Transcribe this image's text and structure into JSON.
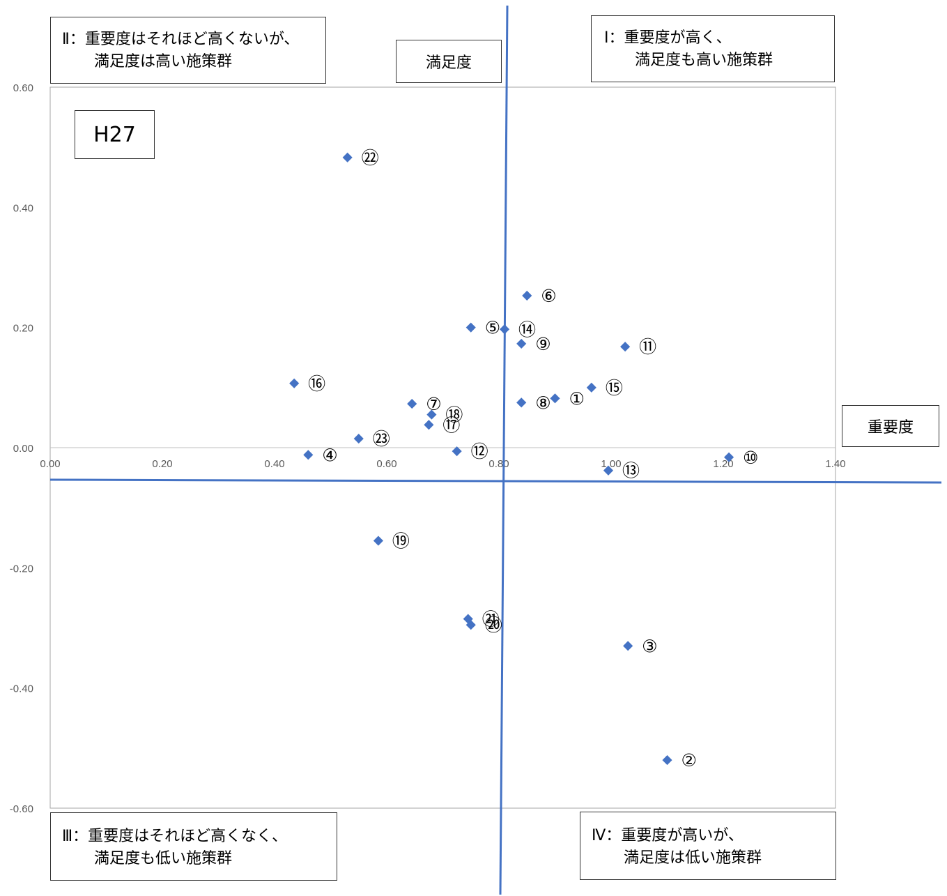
{
  "chart_data": {
    "type": "scatter",
    "title": "H27",
    "xlabel": "重要度",
    "ylabel": "満足度",
    "xlim": [
      0,
      1.4
    ],
    "ylim": [
      -0.6,
      0.6
    ],
    "x_ticks": [
      "0.00",
      "0.20",
      "0.40",
      "0.60",
      "0.80",
      "1.00",
      "1.20",
      "1.40"
    ],
    "y_ticks": [
      "0.60",
      "0.40",
      "0.20",
      "0.00",
      "-0.20",
      "-0.40",
      "-0.60"
    ],
    "series_color": "#4472C4",
    "points": [
      {
        "label": "①",
        "x": 0.9,
        "y": 0.082
      },
      {
        "label": "②",
        "x": 1.1,
        "y": -0.52
      },
      {
        "label": "③",
        "x": 1.03,
        "y": -0.33
      },
      {
        "label": "④",
        "x": 0.46,
        "y": -0.012
      },
      {
        "label": "⑤",
        "x": 0.75,
        "y": 0.2
      },
      {
        "label": "⑥",
        "x": 0.85,
        "y": 0.253
      },
      {
        "label": "⑦",
        "x": 0.645,
        "y": 0.073
      },
      {
        "label": "⑧",
        "x": 0.84,
        "y": 0.075
      },
      {
        "label": "⑨",
        "x": 0.84,
        "y": 0.173
      },
      {
        "label": "⑩",
        "x": 1.21,
        "y": -0.016
      },
      {
        "label": "⑪",
        "x": 1.025,
        "y": 0.168
      },
      {
        "label": "⑫",
        "x": 0.725,
        "y": -0.006
      },
      {
        "label": "⑬",
        "x": 0.995,
        "y": -0.038
      },
      {
        "label": "⑭",
        "x": 0.81,
        "y": 0.197
      },
      {
        "label": "⑮",
        "x": 0.965,
        "y": 0.1
      },
      {
        "label": "⑯",
        "x": 0.435,
        "y": 0.107
      },
      {
        "label": "⑰",
        "x": 0.675,
        "y": 0.038
      },
      {
        "label": "⑱",
        "x": 0.68,
        "y": 0.055
      },
      {
        "label": "⑲",
        "x": 0.585,
        "y": -0.155
      },
      {
        "label": "⑳",
        "x": 0.75,
        "y": -0.295
      },
      {
        "label": "㉑",
        "x": 0.745,
        "y": -0.285
      },
      {
        "label": "㉒",
        "x": 0.53,
        "y": 0.483
      },
      {
        "label": "㉓",
        "x": 0.55,
        "y": 0.015
      }
    ],
    "quadrant_lines": {
      "x": 0.81,
      "y": -0.05,
      "color": "#4472C4"
    }
  },
  "quadrants": {
    "q1": {
      "line1": "Ⅰ：重要度が高く、",
      "line2": "満足度も高い施策群"
    },
    "q2": {
      "line1": "Ⅱ：重要度はそれほど高くないが、",
      "line2": "満足度は高い施策群"
    },
    "q3": {
      "line1": "Ⅲ：重要度はそれほど高くなく、",
      "line2": "満足度も低い施策群"
    },
    "q4": {
      "line1": "Ⅳ：重要度が高いが、",
      "line2": "満足度は低い施策群"
    }
  }
}
